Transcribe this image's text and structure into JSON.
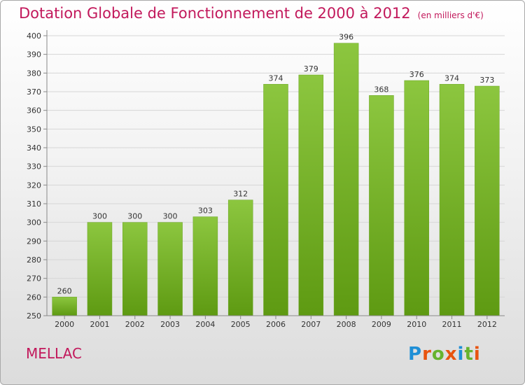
{
  "header": {
    "title": "Dotation Globale de Fonctionnement de 2000 à 2012",
    "unit": "(en milliers d'€)"
  },
  "footer": {
    "commune": "MELLAC",
    "logo": "Proxiti"
  },
  "chart_data": {
    "type": "bar",
    "title": "Dotation Globale de Fonctionnement de 2000 à 2012",
    "subtitle": "(en milliers d'€)",
    "categories": [
      "2000",
      "2001",
      "2002",
      "2003",
      "2004",
      "2005",
      "2006",
      "2007",
      "2008",
      "2009",
      "2010",
      "2011",
      "2012"
    ],
    "values": [
      260,
      300,
      300,
      300,
      303,
      312,
      374,
      379,
      396,
      368,
      376,
      374,
      373
    ],
    "ylim": [
      250,
      400
    ],
    "yticks": [
      250,
      260,
      270,
      280,
      290,
      300,
      310,
      320,
      330,
      340,
      350,
      360,
      370,
      380,
      390,
      400
    ],
    "grid": true,
    "bar_color": "#8cc63f",
    "bar_color_dark": "#5e9a12"
  }
}
